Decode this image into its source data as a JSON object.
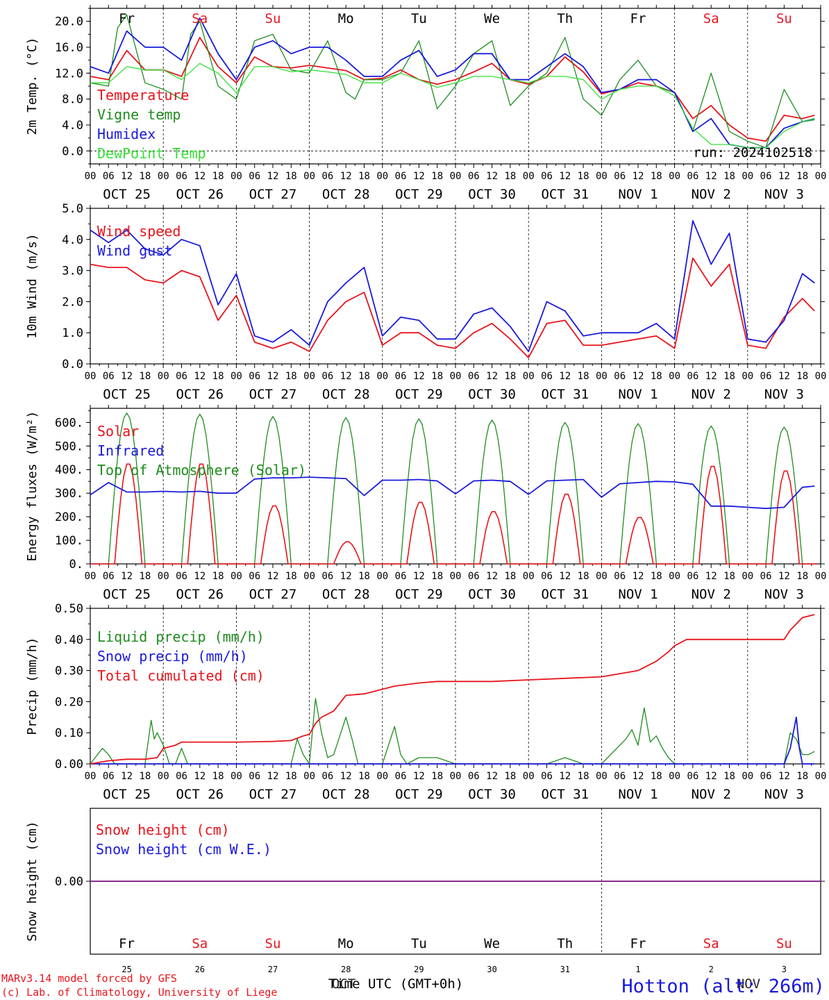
{
  "credits": {
    "line1": "MARv3.14 model forced by GFS",
    "line2": "(c) Lab. of Climatology, University of Liege"
  },
  "station": "Hotton (alt: 266m)",
  "x_axis_title": "Time UTC (GMT+0h)",
  "bottom_month_overlay": [
    "OCT",
    "NOV"
  ],
  "run_label": "run: 2024102518",
  "colors": {
    "red": "#e8141c",
    "green": "#1e8c1e",
    "blue": "#1a1adc",
    "lightgreen": "#35e035",
    "purple": "#8c2c8c",
    "weekend": "#e8141c",
    "weekday": "#000000"
  },
  "days": [
    {
      "dow": "Fr",
      "date": "OCT 25",
      "num": "25",
      "weekend": false
    },
    {
      "dow": "Sa",
      "date": "OCT 26",
      "num": "26",
      "weekend": true
    },
    {
      "dow": "Su",
      "date": "OCT 27",
      "num": "27",
      "weekend": true
    },
    {
      "dow": "Mo",
      "date": "OCT 28",
      "num": "28",
      "weekend": false
    },
    {
      "dow": "Tu",
      "date": "OCT 29",
      "num": "29",
      "weekend": false
    },
    {
      "dow": "We",
      "date": "OCT 30",
      "num": "30",
      "weekend": false
    },
    {
      "dow": "Th",
      "date": "OCT 31",
      "num": "31",
      "weekend": false
    },
    {
      "dow": "Fr",
      "date": "NOV  1",
      "num": "1",
      "weekend": false
    },
    {
      "dow": "Sa",
      "date": "NOV  2",
      "num": "2",
      "weekend": true
    },
    {
      "dow": "Su",
      "date": "NOV  3",
      "num": "3",
      "weekend": true
    }
  ],
  "hour_ticks": [
    "00",
    "06",
    "12",
    "18"
  ],
  "chart_data": [
    {
      "type": "line",
      "ylabel": "2m Temp. (°C)",
      "ylim": [
        -2,
        22
      ],
      "yticks": [
        0,
        4,
        8,
        12,
        16,
        20
      ],
      "ytick_labels": [
        "0.0",
        "4.0",
        "8.0",
        "12.0",
        "16.0",
        "20.0"
      ],
      "x_unit": "hours since Oct 25 00 UTC",
      "zero_line": true,
      "legend": [
        "Temperature",
        "Vigne temp",
        "Humidex",
        "DewPoint Temp"
      ],
      "series": [
        {
          "name": "Temperature",
          "color": "red",
          "x": [
            0,
            6,
            12,
            18,
            24,
            30,
            36,
            42,
            48,
            54,
            60,
            66,
            72,
            78,
            84,
            90,
            96,
            102,
            108,
            114,
            120,
            126,
            132,
            138,
            144,
            150,
            156,
            162,
            168,
            174,
            180,
            186,
            192,
            198,
            204,
            210,
            216,
            222,
            228,
            234,
            238
          ],
          "values": [
            11.5,
            11,
            15.5,
            12.5,
            12.5,
            11.5,
            17.5,
            13,
            10.5,
            14.5,
            13,
            12.8,
            13.2,
            12.8,
            12.4,
            11,
            11.2,
            12.5,
            11,
            10.3,
            11,
            12.2,
            13.5,
            11,
            10.3,
            11.5,
            14.5,
            12.2,
            8.8,
            9.5,
            10.5,
            10,
            9,
            5,
            7,
            4,
            2,
            1.5,
            5.5,
            5,
            5.5
          ]
        },
        {
          "name": "Vigne temp",
          "color": "green",
          "x": [
            0,
            6,
            9,
            12,
            18,
            24,
            30,
            33,
            36,
            42,
            48,
            54,
            60,
            66,
            72,
            78,
            84,
            87,
            90,
            96,
            102,
            108,
            114,
            120,
            126,
            132,
            138,
            144,
            150,
            156,
            162,
            168,
            174,
            180,
            186,
            192,
            198,
            204,
            210,
            216,
            222,
            228,
            234,
            238
          ],
          "values": [
            10.5,
            10,
            19,
            21,
            10.5,
            9.5,
            8,
            18,
            20,
            10,
            8,
            17,
            18,
            12.5,
            12,
            17,
            9,
            8,
            11,
            11,
            12,
            17,
            6.5,
            10,
            15,
            17,
            7,
            10,
            12,
            17.5,
            8,
            5.5,
            11,
            14,
            10,
            9,
            3,
            12,
            3,
            1.5,
            0.5,
            9.5,
            4.5,
            4.8
          ]
        },
        {
          "name": "Humidex",
          "color": "blue",
          "x": [
            0,
            6,
            12,
            18,
            24,
            30,
            36,
            42,
            48,
            54,
            60,
            66,
            72,
            78,
            84,
            90,
            96,
            102,
            108,
            114,
            120,
            126,
            132,
            138,
            144,
            150,
            156,
            162,
            168,
            174,
            180,
            186,
            192,
            198,
            204,
            210,
            216,
            222,
            228,
            234,
            238
          ],
          "values": [
            13,
            12,
            18.5,
            16,
            16,
            14,
            20.5,
            15,
            11,
            16,
            17,
            15,
            16,
            16,
            14,
            11.5,
            11.5,
            14,
            15.5,
            11.5,
            12.5,
            15,
            15,
            11,
            11,
            13,
            15,
            13,
            9,
            9.5,
            11,
            11,
            9,
            3,
            5,
            1,
            0.5,
            0.5,
            3.5,
            4.5,
            5
          ]
        },
        {
          "name": "DewPoint Temp",
          "color": "lightgreen",
          "x": [
            0,
            6,
            12,
            18,
            24,
            30,
            36,
            42,
            48,
            54,
            60,
            66,
            72,
            78,
            84,
            90,
            96,
            102,
            108,
            114,
            120,
            126,
            132,
            138,
            144,
            150,
            156,
            162,
            168,
            174,
            180,
            186,
            192,
            198,
            204,
            210,
            216,
            222,
            228,
            234,
            238
          ],
          "values": [
            10.5,
            10.5,
            13,
            12.5,
            12.5,
            11,
            13.5,
            12,
            9,
            13,
            13,
            12.2,
            12.5,
            12.2,
            11.8,
            10.5,
            10.5,
            12,
            11,
            9.8,
            10.5,
            11.5,
            11.5,
            11,
            10.5,
            11.5,
            11.5,
            11,
            8,
            9.5,
            10,
            10,
            8.5,
            3.5,
            1,
            1,
            0.5,
            0.5,
            3,
            4.5,
            5
          ]
        }
      ]
    },
    {
      "type": "line",
      "ylabel": "10m Wind (m/s)",
      "ylim": [
        0,
        5
      ],
      "yticks": [
        0,
        1,
        2,
        3,
        4,
        5
      ],
      "ytick_labels": [
        "0.0",
        "1.0",
        "2.0",
        "3.0",
        "4.0",
        "5.0"
      ],
      "legend": [
        "Wind speed",
        "Wind gust"
      ],
      "series": [
        {
          "name": "Wind speed",
          "color": "red",
          "x": [
            0,
            6,
            12,
            18,
            24,
            30,
            36,
            42,
            48,
            54,
            60,
            66,
            72,
            78,
            84,
            90,
            96,
            102,
            108,
            114,
            120,
            126,
            132,
            138,
            144,
            150,
            156,
            162,
            168,
            174,
            180,
            186,
            192,
            198,
            204,
            210,
            216,
            222,
            228,
            234,
            238
          ],
          "values": [
            3.2,
            3.1,
            3.1,
            2.7,
            2.6,
            3,
            2.8,
            1.4,
            2.2,
            0.7,
            0.5,
            0.7,
            0.4,
            1.4,
            2,
            2.3,
            0.6,
            1,
            1,
            0.6,
            0.5,
            1,
            1.3,
            0.8,
            0.2,
            1.3,
            1.4,
            0.6,
            0.6,
            0.7,
            0.8,
            0.9,
            0.5,
            3.4,
            2.5,
            3.2,
            0.6,
            0.5,
            1.5,
            2.1,
            1.7
          ]
        },
        {
          "name": "Wind gust",
          "color": "blue",
          "x": [
            0,
            6,
            12,
            18,
            24,
            30,
            36,
            42,
            48,
            54,
            60,
            66,
            72,
            78,
            84,
            90,
            96,
            102,
            108,
            114,
            120,
            126,
            132,
            138,
            144,
            150,
            156,
            162,
            168,
            174,
            180,
            186,
            192,
            198,
            204,
            210,
            216,
            222,
            228,
            234,
            238
          ],
          "values": [
            4.3,
            3.9,
            4.3,
            3.7,
            3.5,
            4,
            3.8,
            1.9,
            2.9,
            0.9,
            0.7,
            1.1,
            0.6,
            2,
            2.6,
            3.1,
            0.9,
            1.5,
            1.4,
            0.8,
            0.8,
            1.6,
            1.8,
            1.2,
            0.4,
            2,
            1.7,
            0.9,
            1,
            1,
            1,
            1.3,
            0.8,
            4.6,
            3.2,
            4.2,
            0.8,
            0.7,
            1.4,
            2.9,
            2.6
          ]
        }
      ]
    },
    {
      "type": "line",
      "ylabel": "Energy fluxes (W/m²)",
      "ylim": [
        0,
        660
      ],
      "yticks": [
        0,
        100,
        200,
        300,
        400,
        500,
        600
      ],
      "ytick_labels": [
        "0.",
        "100.",
        "200.",
        "300.",
        "400.",
        "500.",
        "600."
      ],
      "legend": [
        "Solar",
        "Infrared",
        "Top of Atmosphere (Solar)"
      ],
      "solar_peaks": [
        430,
        430,
        250,
        95,
        265,
        225,
        300,
        200,
        420,
        400
      ],
      "toa_peaks": [
        640,
        635,
        625,
        620,
        615,
        610,
        600,
        595,
        585,
        580
      ],
      "series": [
        {
          "name": "Infrared",
          "color": "blue",
          "x": [
            0,
            6,
            12,
            18,
            24,
            30,
            36,
            42,
            48,
            54,
            60,
            66,
            72,
            78,
            84,
            90,
            96,
            102,
            108,
            114,
            120,
            126,
            132,
            138,
            144,
            150,
            156,
            162,
            168,
            174,
            180,
            186,
            192,
            198,
            204,
            210,
            216,
            222,
            228,
            234,
            238
          ],
          "values": [
            293,
            345,
            305,
            305,
            308,
            305,
            308,
            300,
            300,
            360,
            365,
            365,
            368,
            365,
            362,
            290,
            355,
            355,
            358,
            352,
            297,
            352,
            355,
            350,
            295,
            352,
            355,
            358,
            283,
            340,
            345,
            350,
            348,
            338,
            245,
            245,
            240,
            235,
            240,
            325,
            330
          ]
        }
      ]
    },
    {
      "type": "line",
      "ylabel": "Precip (mm/h)",
      "ylim": [
        0,
        0.5
      ],
      "yticks": [
        0,
        0.1,
        0.2,
        0.3,
        0.4,
        0.5
      ],
      "ytick_labels": [
        "0.00",
        "0.10",
        "0.20",
        "0.30",
        "0.40",
        "0.50"
      ],
      "legend": [
        "Liquid precip (mm/h)",
        "Snow precip (mm/h)",
        "Total cumulated (cm)"
      ],
      "series": [
        {
          "name": "Liquid precip (mm/h)",
          "color": "green",
          "x": [
            0,
            4,
            6,
            8,
            12,
            18,
            20,
            21,
            22,
            24,
            26,
            28,
            30,
            32,
            34,
            36,
            40,
            42,
            48,
            54,
            60,
            66,
            68,
            70,
            72,
            74,
            76,
            78,
            80,
            84,
            86,
            88,
            90,
            92,
            94,
            96,
            100,
            102,
            104,
            108,
            114,
            120,
            150,
            156,
            162,
            168,
            172,
            176,
            178,
            180,
            182,
            184,
            186,
            188,
            190,
            192,
            196,
            200,
            204,
            210,
            216,
            222,
            228,
            230,
            232,
            234,
            236,
            238
          ],
          "values": [
            0,
            0.05,
            0.03,
            0,
            0,
            0,
            0.14,
            0.08,
            0.1,
            0.06,
            0,
            0,
            0.05,
            0,
            0,
            0,
            0,
            0,
            0,
            0,
            0,
            0,
            0.08,
            0.03,
            0,
            0.21,
            0.1,
            0.02,
            0.03,
            0.15,
            0.08,
            0,
            0,
            0,
            0,
            0,
            0.12,
            0.03,
            0,
            0.02,
            0.02,
            0,
            0,
            0.02,
            0,
            0,
            0.04,
            0.08,
            0.11,
            0.06,
            0.18,
            0.07,
            0.09,
            0.05,
            0.02,
            0,
            0,
            0,
            0,
            0,
            0,
            0,
            0,
            0.1,
            0.08,
            0.03,
            0.03,
            0.04
          ]
        },
        {
          "name": "Snow precip (mm/h)",
          "color": "blue",
          "x": [
            0,
            228,
            230,
            232,
            233,
            234,
            236,
            238
          ],
          "values": [
            0,
            0,
            0.05,
            0.15,
            0.05,
            0,
            0,
            0
          ]
        },
        {
          "name": "Total cumulated (cm)",
          "color": "red",
          "x": [
            0,
            6,
            12,
            18,
            22,
            24,
            28,
            30,
            36,
            42,
            48,
            60,
            66,
            70,
            72,
            74,
            76,
            80,
            84,
            90,
            96,
            100,
            108,
            114,
            120,
            132,
            144,
            156,
            168,
            174,
            180,
            186,
            190,
            192,
            196,
            204,
            216,
            222,
            228,
            230,
            234,
            238
          ],
          "values": [
            0,
            0.01,
            0.015,
            0.015,
            0.02,
            0.05,
            0.06,
            0.07,
            0.07,
            0.07,
            0.07,
            0.072,
            0.075,
            0.09,
            0.095,
            0.13,
            0.15,
            0.17,
            0.22,
            0.225,
            0.24,
            0.25,
            0.26,
            0.265,
            0.265,
            0.265,
            0.27,
            0.275,
            0.28,
            0.29,
            0.3,
            0.33,
            0.36,
            0.38,
            0.4,
            0.4,
            0.4,
            0.4,
            0.4,
            0.43,
            0.47,
            0.48
          ]
        }
      ]
    },
    {
      "type": "line",
      "ylabel": "Snow height (cm)",
      "ylim": [
        -1,
        1
      ],
      "yticks": [
        0
      ],
      "ytick_labels": [
        "0.00"
      ],
      "legend": [
        "Snow height (cm)",
        "Snow height (cm W.E.)"
      ],
      "series": [
        {
          "name": "Snow height (cm)",
          "color": "red",
          "x": [
            0,
            240
          ],
          "values": [
            0,
            0
          ]
        },
        {
          "name": "Snow height (cm W.E.)",
          "color": "blue",
          "x": [
            0,
            240
          ],
          "values": [
            0,
            0
          ]
        }
      ]
    }
  ]
}
